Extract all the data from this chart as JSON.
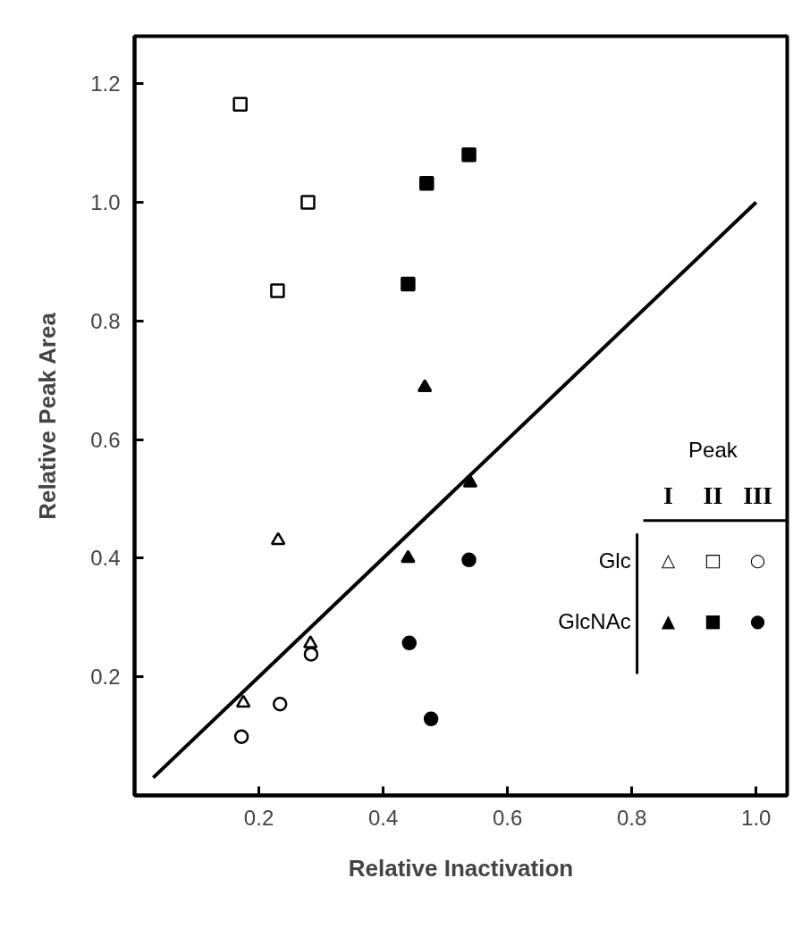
{
  "chart_data": {
    "type": "scatter",
    "xlabel": "Relative Inactivation",
    "ylabel": "Relative Peak Area",
    "xlim": [
      0,
      1.05
    ],
    "ylim": [
      0,
      1.28
    ],
    "xticks": [
      0.2,
      0.4,
      0.6,
      0.8,
      {
        "value": 1,
        "label": "1.0"
      }
    ],
    "yticks": [
      0.2,
      0.4,
      0.6,
      0.8,
      {
        "value": 1,
        "label": "1.0"
      },
      1.2
    ],
    "grid": false,
    "legend_title": "Peak",
    "annotations": [
      "I",
      "II",
      "III",
      "Glc",
      "GlcNAc",
      "△",
      "□",
      "○",
      "▲",
      "■",
      "●"
    ],
    "series": [
      {
        "marker": "triangle",
        "color": "#ffffff",
        "x": [
          0.231,
          0.283,
          0.175
        ],
        "values": [
          0.43,
          0.256,
          0.156
        ]
      },
      {
        "marker": "square",
        "color": "#ffffff",
        "x": [
          0.17,
          0.279,
          0.23
        ],
        "values": [
          1.165,
          1.0,
          0.851
        ]
      },
      {
        "marker": "circle",
        "color": "#ffffff",
        "x": [
          0.284,
          0.234,
          0.172
        ],
        "values": [
          0.238,
          0.154,
          0.099
        ]
      },
      {
        "marker": "triangle",
        "color": "#000000",
        "x": [
          0.467,
          0.54,
          0.44
        ],
        "values": [
          0.688,
          0.527,
          0.4
        ]
      },
      {
        "marker": "square",
        "color": "#000000",
        "x": [
          0.538,
          0.47,
          0.44
        ],
        "values": [
          1.08,
          1.032,
          0.862
        ]
      },
      {
        "marker": "circle",
        "color": "#000000",
        "x": [
          0.538,
          0.442,
          0.477
        ],
        "values": [
          0.397,
          0.257,
          0.129
        ]
      },
      {
        "type": "line",
        "marker": "none",
        "color": "#000000",
        "x": [
          0.03,
          1.0
        ],
        "values": [
          0.03,
          1.0
        ]
      }
    ]
  }
}
